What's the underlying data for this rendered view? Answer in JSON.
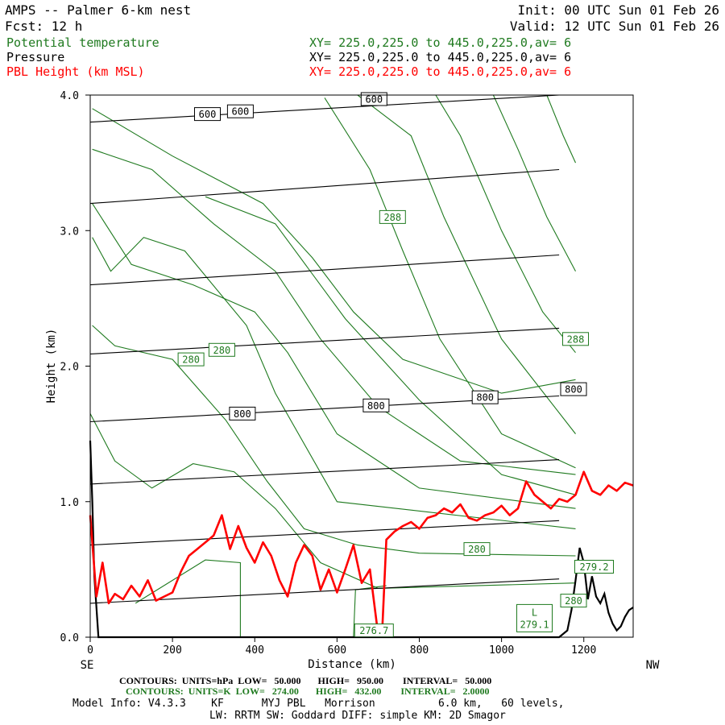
{
  "header": {
    "title": "AMPS -- Palmer 6-km nest",
    "init": "Init: 00 UTC Sun 01 Feb 26",
    "fcst": "Fcst:   12 h",
    "valid": "Valid: 12 UTC Sun 01 Feb 26",
    "fields": [
      {
        "name": "Potential temperature",
        "xy": "XY= 225.0,225.0 to 445.0,225.0,av=  6",
        "color": "#1f7a1f"
      },
      {
        "name": "Pressure",
        "xy": "XY= 225.0,225.0 to 445.0,225.0,av=  6",
        "color": "#000000"
      },
      {
        "name": "PBL Height (km MSL)",
        "xy": "XY= 225.0,225.0 to 445.0,225.0,av=  6",
        "color": "#ff0000"
      }
    ]
  },
  "chart_data": {
    "type": "line",
    "title": "AMPS -- Palmer 6-km nest",
    "xlabel": "Distance (km)",
    "ylabel": "Height (km)",
    "xlim": [
      0,
      1320
    ],
    "ylim": [
      0,
      4.0
    ],
    "x_ticks": [
      "0",
      "200",
      "400",
      "600",
      "800",
      "1000",
      "1200"
    ],
    "x_tick_values": [
      0,
      200,
      400,
      600,
      800,
      1000,
      1200
    ],
    "y_ticks": [
      "0.0",
      "1.0",
      "2.0",
      "3.0",
      "4.0"
    ],
    "y_tick_values": [
      0,
      1,
      2,
      3,
      4
    ],
    "x_end_labels": {
      "left": "SE",
      "right": "NW"
    },
    "pressure_contours": {
      "color": "#000000",
      "lines": [
        {
          "x": [
            0,
            1140
          ],
          "y": [
            0.25,
            0.43
          ]
        },
        {
          "x": [
            0,
            1140
          ],
          "y": [
            0.68,
            0.86
          ]
        },
        {
          "x": [
            0,
            1140
          ],
          "y": [
            1.13,
            1.31
          ]
        },
        {
          "x": [
            0,
            1140
          ],
          "y": [
            1.59,
            1.78
          ]
        },
        {
          "x": [
            0,
            1140
          ],
          "y": [
            2.09,
            2.28
          ]
        },
        {
          "x": [
            0,
            1140
          ],
          "y": [
            2.6,
            2.82
          ]
        },
        {
          "x": [
            0,
            1140
          ],
          "y": [
            3.2,
            3.45
          ]
        },
        {
          "x": [
            0,
            1140
          ],
          "y": [
            3.8,
            4.07
          ]
        }
      ],
      "labels": [
        {
          "text": "600",
          "x": 285,
          "y": 3.86
        },
        {
          "text": "600",
          "x": 365,
          "y": 3.88
        },
        {
          "text": "600",
          "x": 690,
          "y": 3.97
        },
        {
          "text": "800",
          "x": 370,
          "y": 1.65
        },
        {
          "text": "800",
          "x": 695,
          "y": 1.71
        },
        {
          "text": "800",
          "x": 960,
          "y": 1.77
        },
        {
          "text": "800",
          "x": 1175,
          "y": 1.83
        }
      ]
    },
    "theta_contours": {
      "color": "#1f7a1f",
      "lines": [
        {
          "x": [
            5,
            200,
            420,
            540,
            640,
            760,
            1000,
            1180
          ],
          "y": [
            3.9,
            3.55,
            3.2,
            2.8,
            2.4,
            2.05,
            1.8,
            1.9
          ]
        },
        {
          "x": [
            5,
            150,
            300,
            450,
            560,
            700,
            900,
            1180
          ],
          "y": [
            3.6,
            3.45,
            3.05,
            2.7,
            2.2,
            1.7,
            1.3,
            1.2
          ]
        },
        {
          "x": [
            5,
            100,
            250,
            400,
            480,
            600,
            800,
            1180
          ],
          "y": [
            3.2,
            2.75,
            2.6,
            2.4,
            2.1,
            1.5,
            1.1,
            0.95
          ]
        },
        {
          "x": [
            5,
            50,
            130,
            230,
            380,
            450,
            600,
            1180
          ],
          "y": [
            2.95,
            2.7,
            2.95,
            2.85,
            2.3,
            1.8,
            1.0,
            0.8
          ]
        },
        {
          "x": [
            5,
            60,
            200,
            330,
            430,
            520,
            650,
            800,
            1180
          ],
          "y": [
            2.3,
            2.15,
            2.05,
            1.6,
            1.15,
            0.8,
            0.68,
            0.62,
            0.6
          ]
        },
        {
          "x": [
            0,
            60,
            150,
            250,
            350,
            450,
            560,
            700,
            1180
          ],
          "y": [
            1.65,
            1.3,
            1.1,
            1.28,
            1.22,
            0.95,
            0.55,
            0.36,
            0.4
          ]
        },
        {
          "x": [
            280,
            450,
            620,
            800,
            1000,
            1180
          ],
          "y": [
            3.25,
            3.05,
            2.35,
            1.75,
            1.2,
            1.05
          ]
        },
        {
          "x": [
            570,
            680,
            760,
            850,
            1000,
            1180
          ],
          "y": [
            3.98,
            3.45,
            2.85,
            2.2,
            1.5,
            1.25
          ]
        },
        {
          "x": [
            650,
            780,
            860,
            1000,
            1180
          ],
          "y": [
            4.0,
            3.7,
            3.1,
            2.2,
            1.5
          ]
        },
        {
          "x": [
            840,
            900,
            1000,
            1100,
            1180
          ],
          "y": [
            4.0,
            3.7,
            3.0,
            2.4,
            2.1
          ]
        },
        {
          "x": [
            980,
            1040,
            1110,
            1180
          ],
          "y": [
            4.0,
            3.6,
            3.1,
            2.7
          ]
        },
        {
          "x": [
            1110,
            1150,
            1180
          ],
          "y": [
            4.0,
            3.7,
            3.5
          ]
        },
        {
          "x": [
            110,
            280,
            365,
            365
          ],
          "y": [
            0.25,
            0.57,
            0.55,
            0.0
          ]
        },
        {
          "x": [
            640,
            645,
            720
          ],
          "y": [
            0.0,
            0.35,
            0.38
          ]
        }
      ],
      "labels": [
        {
          "text": "288",
          "x": 735,
          "y": 3.1
        },
        {
          "text": "280",
          "x": 245,
          "y": 2.05
        },
        {
          "text": "280",
          "x": 320,
          "y": 2.12
        },
        {
          "text": "288",
          "x": 1180,
          "y": 2.2
        },
        {
          "text": "280",
          "x": 940,
          "y": 0.65
        },
        {
          "text": "280",
          "x": 1175,
          "y": 0.27
        },
        {
          "text": "279.2",
          "x": 1225,
          "y": 0.52
        },
        {
          "text": "276.7",
          "x": 690,
          "y": 0.05
        }
      ],
      "low_marker": {
        "text": "L",
        "value": "279.1",
        "x": 1080,
        "y": 0.14
      }
    },
    "series": [
      {
        "name": "PBL Height (km MSL)",
        "color": "#ff0000",
        "x": [
          0,
          15,
          30,
          45,
          60,
          80,
          100,
          120,
          140,
          160,
          180,
          200,
          220,
          240,
          260,
          280,
          300,
          320,
          340,
          360,
          380,
          400,
          420,
          440,
          460,
          480,
          500,
          520,
          540,
          560,
          580,
          600,
          620,
          640,
          660,
          680,
          700,
          710,
          720,
          740,
          760,
          780,
          800,
          820,
          840,
          860,
          880,
          900,
          920,
          940,
          960,
          980,
          1000,
          1020,
          1040,
          1060,
          1080,
          1100,
          1120,
          1140,
          1160,
          1180,
          1200,
          1220,
          1240,
          1260,
          1280,
          1300,
          1320
        ],
        "y": [
          0.9,
          0.3,
          0.55,
          0.25,
          0.32,
          0.28,
          0.38,
          0.3,
          0.42,
          0.27,
          0.3,
          0.33,
          0.48,
          0.6,
          0.65,
          0.7,
          0.75,
          0.9,
          0.65,
          0.82,
          0.66,
          0.55,
          0.7,
          0.6,
          0.42,
          0.3,
          0.55,
          0.68,
          0.6,
          0.35,
          0.5,
          0.33,
          0.5,
          0.68,
          0.4,
          0.5,
          0.02,
          0.05,
          0.72,
          0.78,
          0.82,
          0.85,
          0.8,
          0.88,
          0.9,
          0.95,
          0.92,
          0.98,
          0.88,
          0.86,
          0.9,
          0.92,
          0.97,
          0.9,
          0.95,
          1.15,
          1.05,
          1.0,
          0.95,
          1.02,
          1.0,
          1.05,
          1.22,
          1.08,
          1.05,
          1.12,
          1.08,
          1.14,
          1.12
        ]
      }
    ],
    "terrain": {
      "color": "#000000",
      "x": [
        0,
        5,
        10,
        20,
        30,
        180,
        370,
        620,
        1140,
        1160,
        1170,
        1180,
        1190,
        1200,
        1210,
        1220,
        1230,
        1240,
        1250,
        1260,
        1270,
        1280,
        1290,
        1300,
        1310,
        1320
      ],
      "y": [
        1.45,
        1.0,
        0.45,
        0.0,
        0.0,
        0.0,
        0.0,
        0.0,
        0.0,
        0.05,
        0.2,
        0.42,
        0.66,
        0.55,
        0.28,
        0.45,
        0.3,
        0.25,
        0.32,
        0.18,
        0.1,
        0.05,
        0.08,
        0.15,
        0.2,
        0.22
      ]
    }
  },
  "footer": {
    "contours_pressure": "CONTOURS:  UNITS=hPa  LOW=   50.000       HIGH=   950.00        INTERVAL=   50.000",
    "contours_theta": "CONTOURS:  UNITS=K  LOW=   274.00       HIGH=   432.00        INTERVAL=   2.0000",
    "model_info": "Model Info: V4.3.3    KF      MYJ PBL   Morrison          6.0 km,   60 levels,",
    "model_info2": "LW: RRTM SW: Goddard DIFF: simple KM: 2D Smagor"
  }
}
